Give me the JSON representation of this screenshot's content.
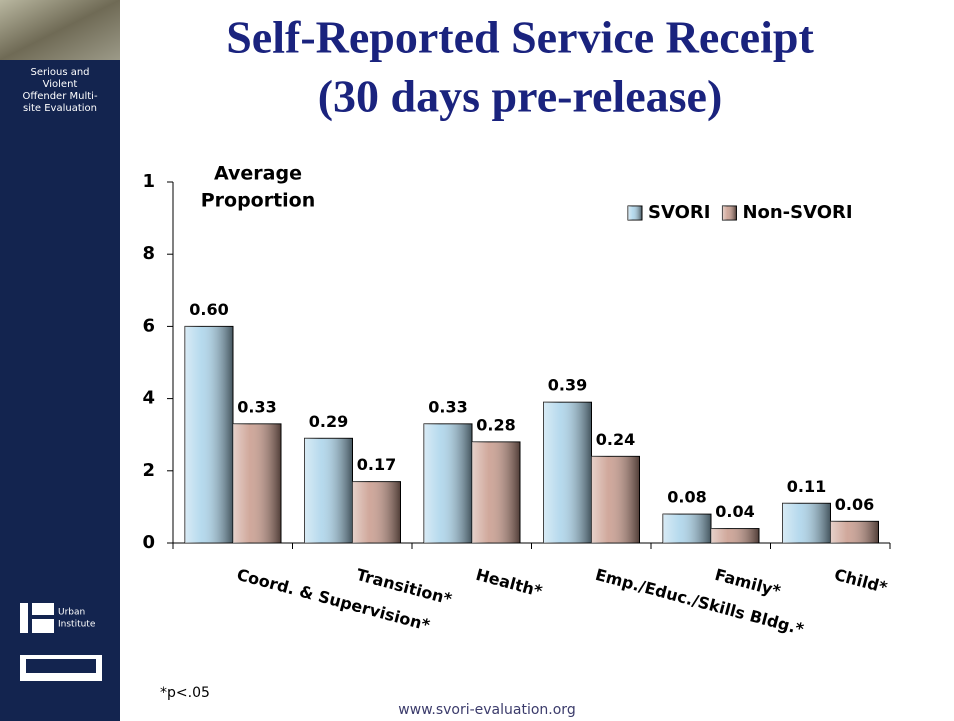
{
  "sidebar": {
    "program": [
      "Serious and",
      "Violent",
      "Offender Multi-",
      "site Evaluation"
    ],
    "logo_text": [
      "Urban",
      "Institute"
    ]
  },
  "footnote": "*p<.05",
  "footer": "www.svori-evaluation.org",
  "chart_data": {
    "type": "bar",
    "title": [
      "Self-Reported Service Receipt",
      "(30 days pre-release)"
    ],
    "y_label": [
      "Average",
      "Proportion"
    ],
    "categories": [
      "Coord. & Supervision*",
      "Transition*",
      "Health*",
      "Emp./Educ./Skills Bldg.*",
      "Family*",
      "Child*"
    ],
    "series": [
      {
        "name": "SVORI",
        "color": "#a9d3ea",
        "values": [
          0.6,
          0.29,
          0.33,
          0.39,
          0.08,
          0.11
        ],
        "value_labels": [
          "0.60",
          "0.29",
          "0.33",
          "0.39",
          "0.08",
          "0.11"
        ]
      },
      {
        "name": "Non-SVORI",
        "color": "#c8998a",
        "values": [
          0.33,
          0.17,
          0.28,
          0.24,
          0.04,
          0.06
        ],
        "value_labels": [
          "0.33",
          "0.17",
          "0.28",
          "0.24",
          "0.04",
          "0.06"
        ]
      }
    ],
    "ylim": [
      0,
      1
    ],
    "yticks": [
      0,
      {
        "value": 0.2,
        "label": "2"
      },
      {
        "value": 0.4,
        "label": "4"
      },
      {
        "value": 0.6,
        "label": "6"
      },
      {
        "value": 0.8,
        "label": "8"
      },
      1
    ],
    "legend": "top-right"
  }
}
